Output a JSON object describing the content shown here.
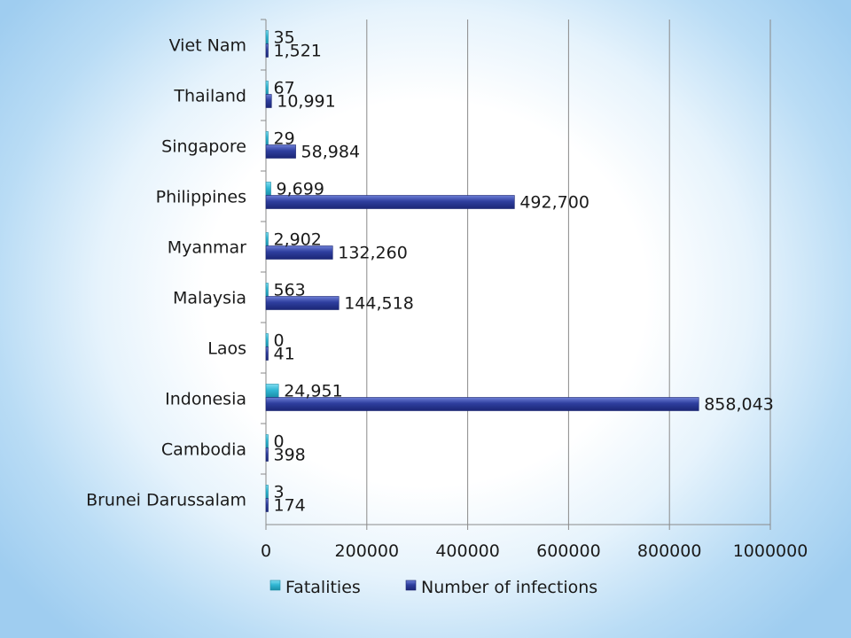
{
  "chart_data": {
    "type": "bar",
    "orientation": "horizontal",
    "categories": [
      "Brunei Darussalam",
      "Cambodia",
      "Indonesia",
      "Laos",
      "Malaysia",
      "Myanmar",
      "Philippines",
      "Singapore",
      "Thailand",
      "Viet Nam"
    ],
    "series": [
      {
        "name": "Fatalities",
        "values": [
          3,
          0,
          24951,
          0,
          563,
          2902,
          9699,
          29,
          67,
          35
        ],
        "labels": [
          "3",
          "0",
          "24,951",
          "0",
          "563",
          "2,902",
          "9,699",
          "29",
          "67",
          "35"
        ],
        "color": "#31b7d4"
      },
      {
        "name": "Number of infections",
        "values": [
          174,
          398,
          858043,
          41,
          144518,
          132260,
          492700,
          58984,
          10991,
          1521
        ],
        "labels": [
          "174",
          "398",
          "858,043",
          "41",
          "144,518",
          "132,260",
          "492,700",
          "58,984",
          "10,991",
          "1,521"
        ],
        "color": "#2e3e9e"
      }
    ],
    "xlim": [
      0,
      1000000
    ],
    "ticks": [
      0,
      200000,
      400000,
      600000,
      800000,
      1000000
    ],
    "tick_labels": [
      "0",
      "200000",
      "400000",
      "600000",
      "800000",
      "1000000"
    ],
    "grid": true,
    "legend": "bottom"
  }
}
